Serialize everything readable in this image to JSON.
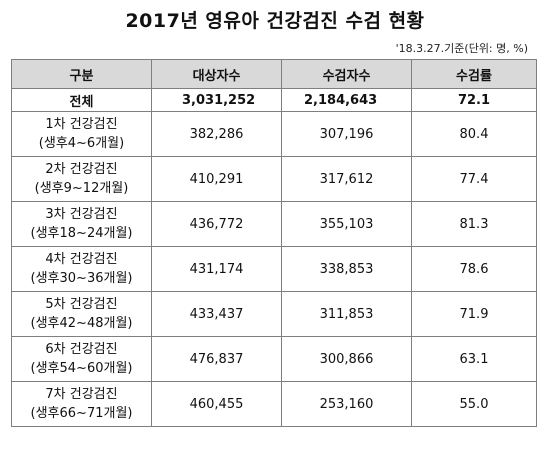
{
  "title": "2017년 영유아 건강검진 수검 현황",
  "note": "'18.3.27.기준(단위: 명, %)",
  "header": {
    "category": "구분",
    "targets": "대상자수",
    "examinees": "수검자수",
    "rate": "수검률"
  },
  "total": {
    "label": "전체",
    "targets": "3,031,252",
    "examinees": "2,184,643",
    "rate": "72.1"
  },
  "rows": [
    {
      "name": "1차 건강검진",
      "period": "(생후4~6개월)",
      "targets": "382,286",
      "examinees": "307,196",
      "rate": "80.4"
    },
    {
      "name": "2차 건강검진",
      "period": "(생후9~12개월)",
      "targets": "410,291",
      "examinees": "317,612",
      "rate": "77.4"
    },
    {
      "name": "3차 건강검진",
      "period": "(생후18~24개월)",
      "targets": "436,772",
      "examinees": "355,103",
      "rate": "81.3"
    },
    {
      "name": "4차 건강검진",
      "period": "(생후30~36개월)",
      "targets": "431,174",
      "examinees": "338,853",
      "rate": "78.6"
    },
    {
      "name": "5차 건강검진",
      "period": "(생후42~48개월)",
      "targets": "433,437",
      "examinees": "311,853",
      "rate": "71.9"
    },
    {
      "name": "6차 건강검진",
      "period": "(생후54~60개월)",
      "targets": "476,837",
      "examinees": "300,866",
      "rate": "63.1"
    },
    {
      "name": "7차 건강검진",
      "period": "(생후66~71개월)",
      "targets": "460,455",
      "examinees": "253,160",
      "rate": "55.0"
    }
  ]
}
